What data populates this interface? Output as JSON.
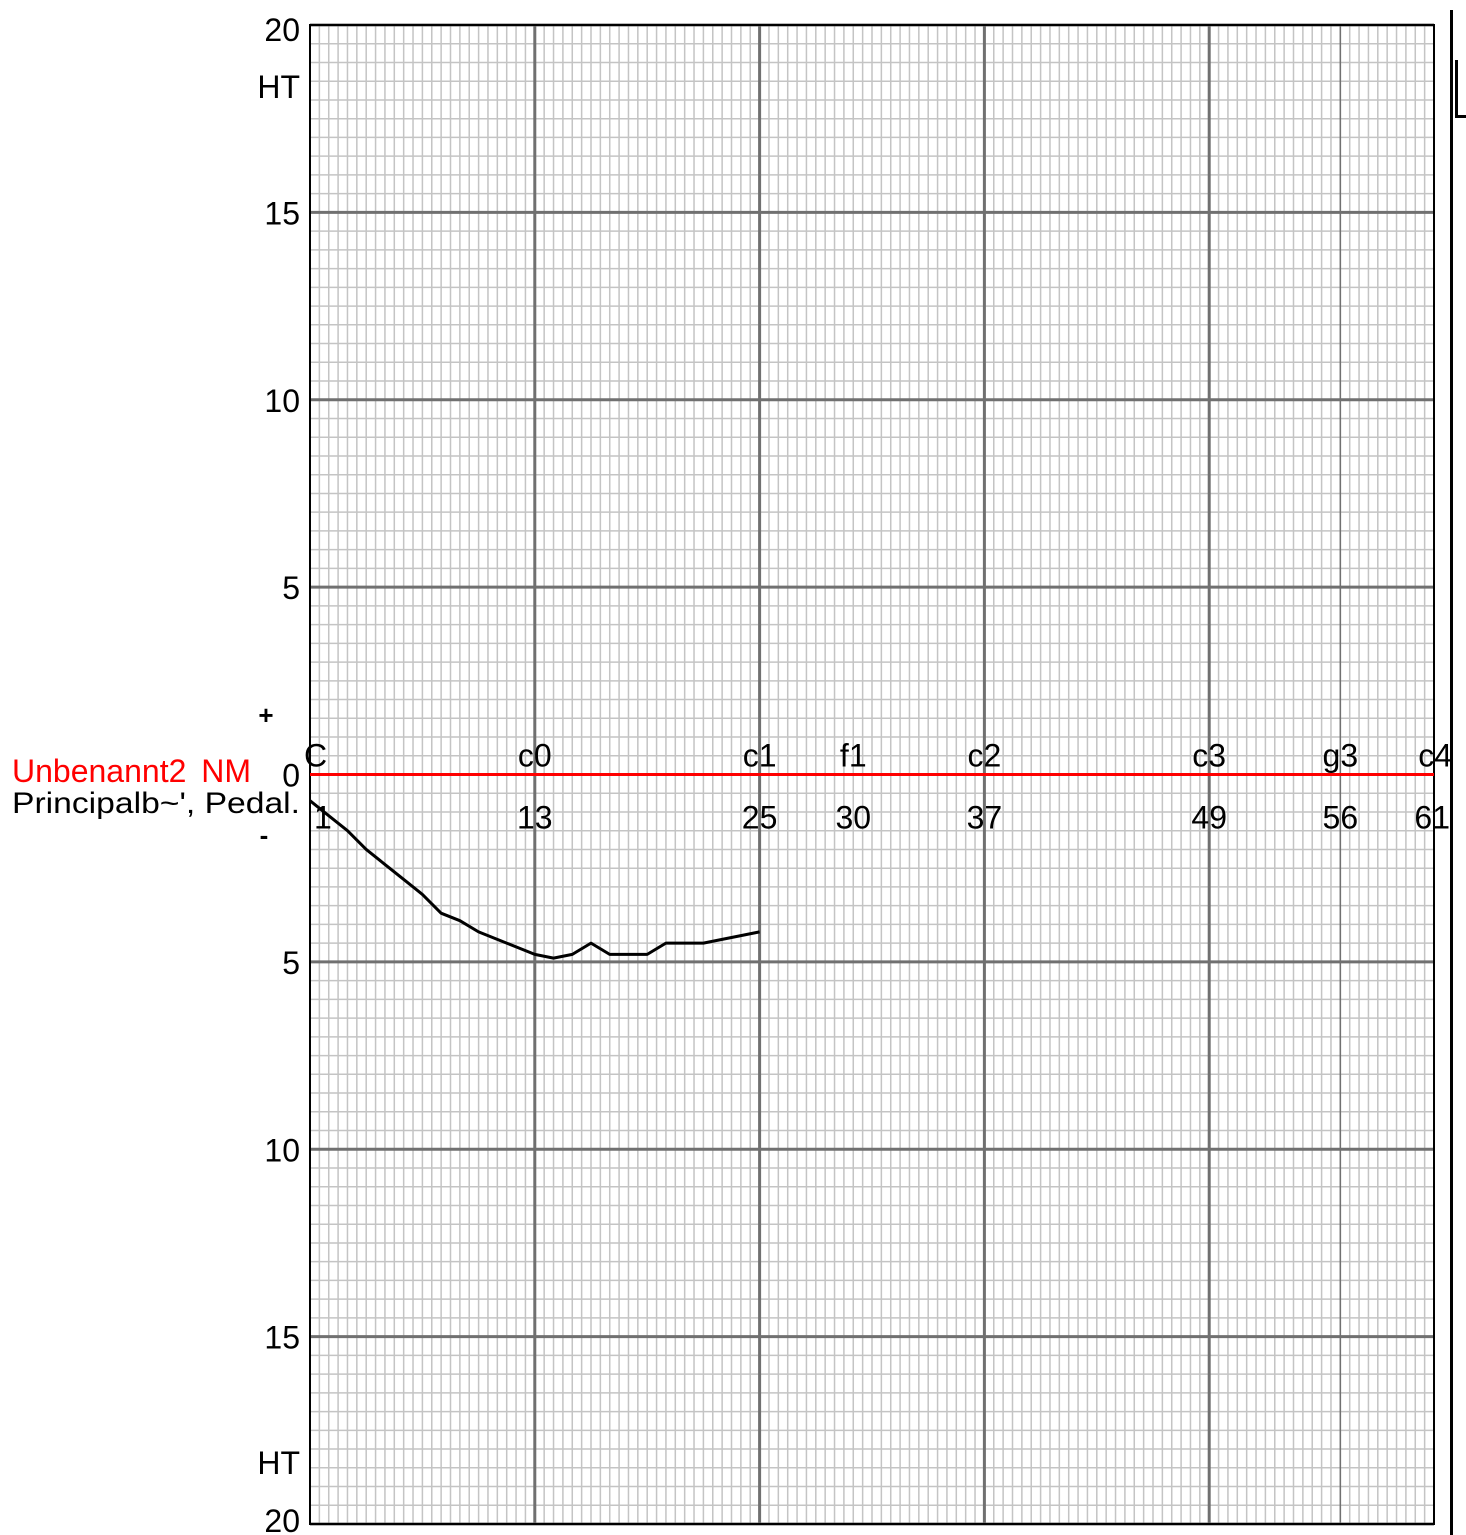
{
  "chart_data": {
    "type": "line",
    "x_axis": {
      "range": [
        1,
        61
      ],
      "note_ticks": [
        {
          "x": 1,
          "label": "C",
          "number": "1"
        },
        {
          "x": 13,
          "label": "c0",
          "number": "13"
        },
        {
          "x": 25,
          "label": "c1",
          "number": "25"
        },
        {
          "x": 30,
          "label": "f1",
          "number": "30"
        },
        {
          "x": 37,
          "label": "c2",
          "number": "37"
        },
        {
          "x": 49,
          "label": "c3",
          "number": "49"
        },
        {
          "x": 56,
          "label": "g3",
          "number": "56"
        },
        {
          "x": 61,
          "label": "c4",
          "number": "61"
        }
      ]
    },
    "y_axis": {
      "range": [
        -20,
        20
      ],
      "ticks": [
        {
          "value": 20,
          "label": "20"
        },
        {
          "value": 15,
          "label": "15"
        },
        {
          "value": 10,
          "label": "10"
        },
        {
          "value": 5,
          "label": "5"
        },
        {
          "value": 0,
          "label": "0"
        },
        {
          "value": -5,
          "label": "5"
        },
        {
          "value": -10,
          "label": "10"
        },
        {
          "value": -15,
          "label": "15"
        },
        {
          "value": -20,
          "label": "20"
        }
      ],
      "top_unit": "HT",
      "bottom_unit": "HT",
      "plus_sign": "+",
      "minus_sign": "-"
    },
    "grid": true,
    "series": [
      {
        "name": "Unbenannt2",
        "suffix": "NM",
        "color": "#ff0000",
        "x": [
          1,
          61
        ],
        "y": [
          0,
          0
        ]
      },
      {
        "name": "Principalb~', Pedal.",
        "color": "#000000",
        "x": [
          1,
          2,
          3,
          4,
          5,
          6,
          7,
          8,
          9,
          10,
          11,
          12,
          13,
          14,
          15,
          16,
          17,
          18,
          19,
          20,
          21,
          22,
          23,
          24,
          25
        ],
        "y": [
          -0.7,
          -1.1,
          -1.5,
          -2.0,
          -2.4,
          -2.8,
          -3.2,
          -3.7,
          -3.9,
          -4.2,
          -4.4,
          -4.6,
          -4.8,
          -4.9,
          -4.8,
          -4.5,
          -4.8,
          -4.8,
          -4.8,
          -4.5,
          -4.5,
          -4.5,
          -4.4,
          -4.3,
          -4.2
        ]
      }
    ]
  }
}
